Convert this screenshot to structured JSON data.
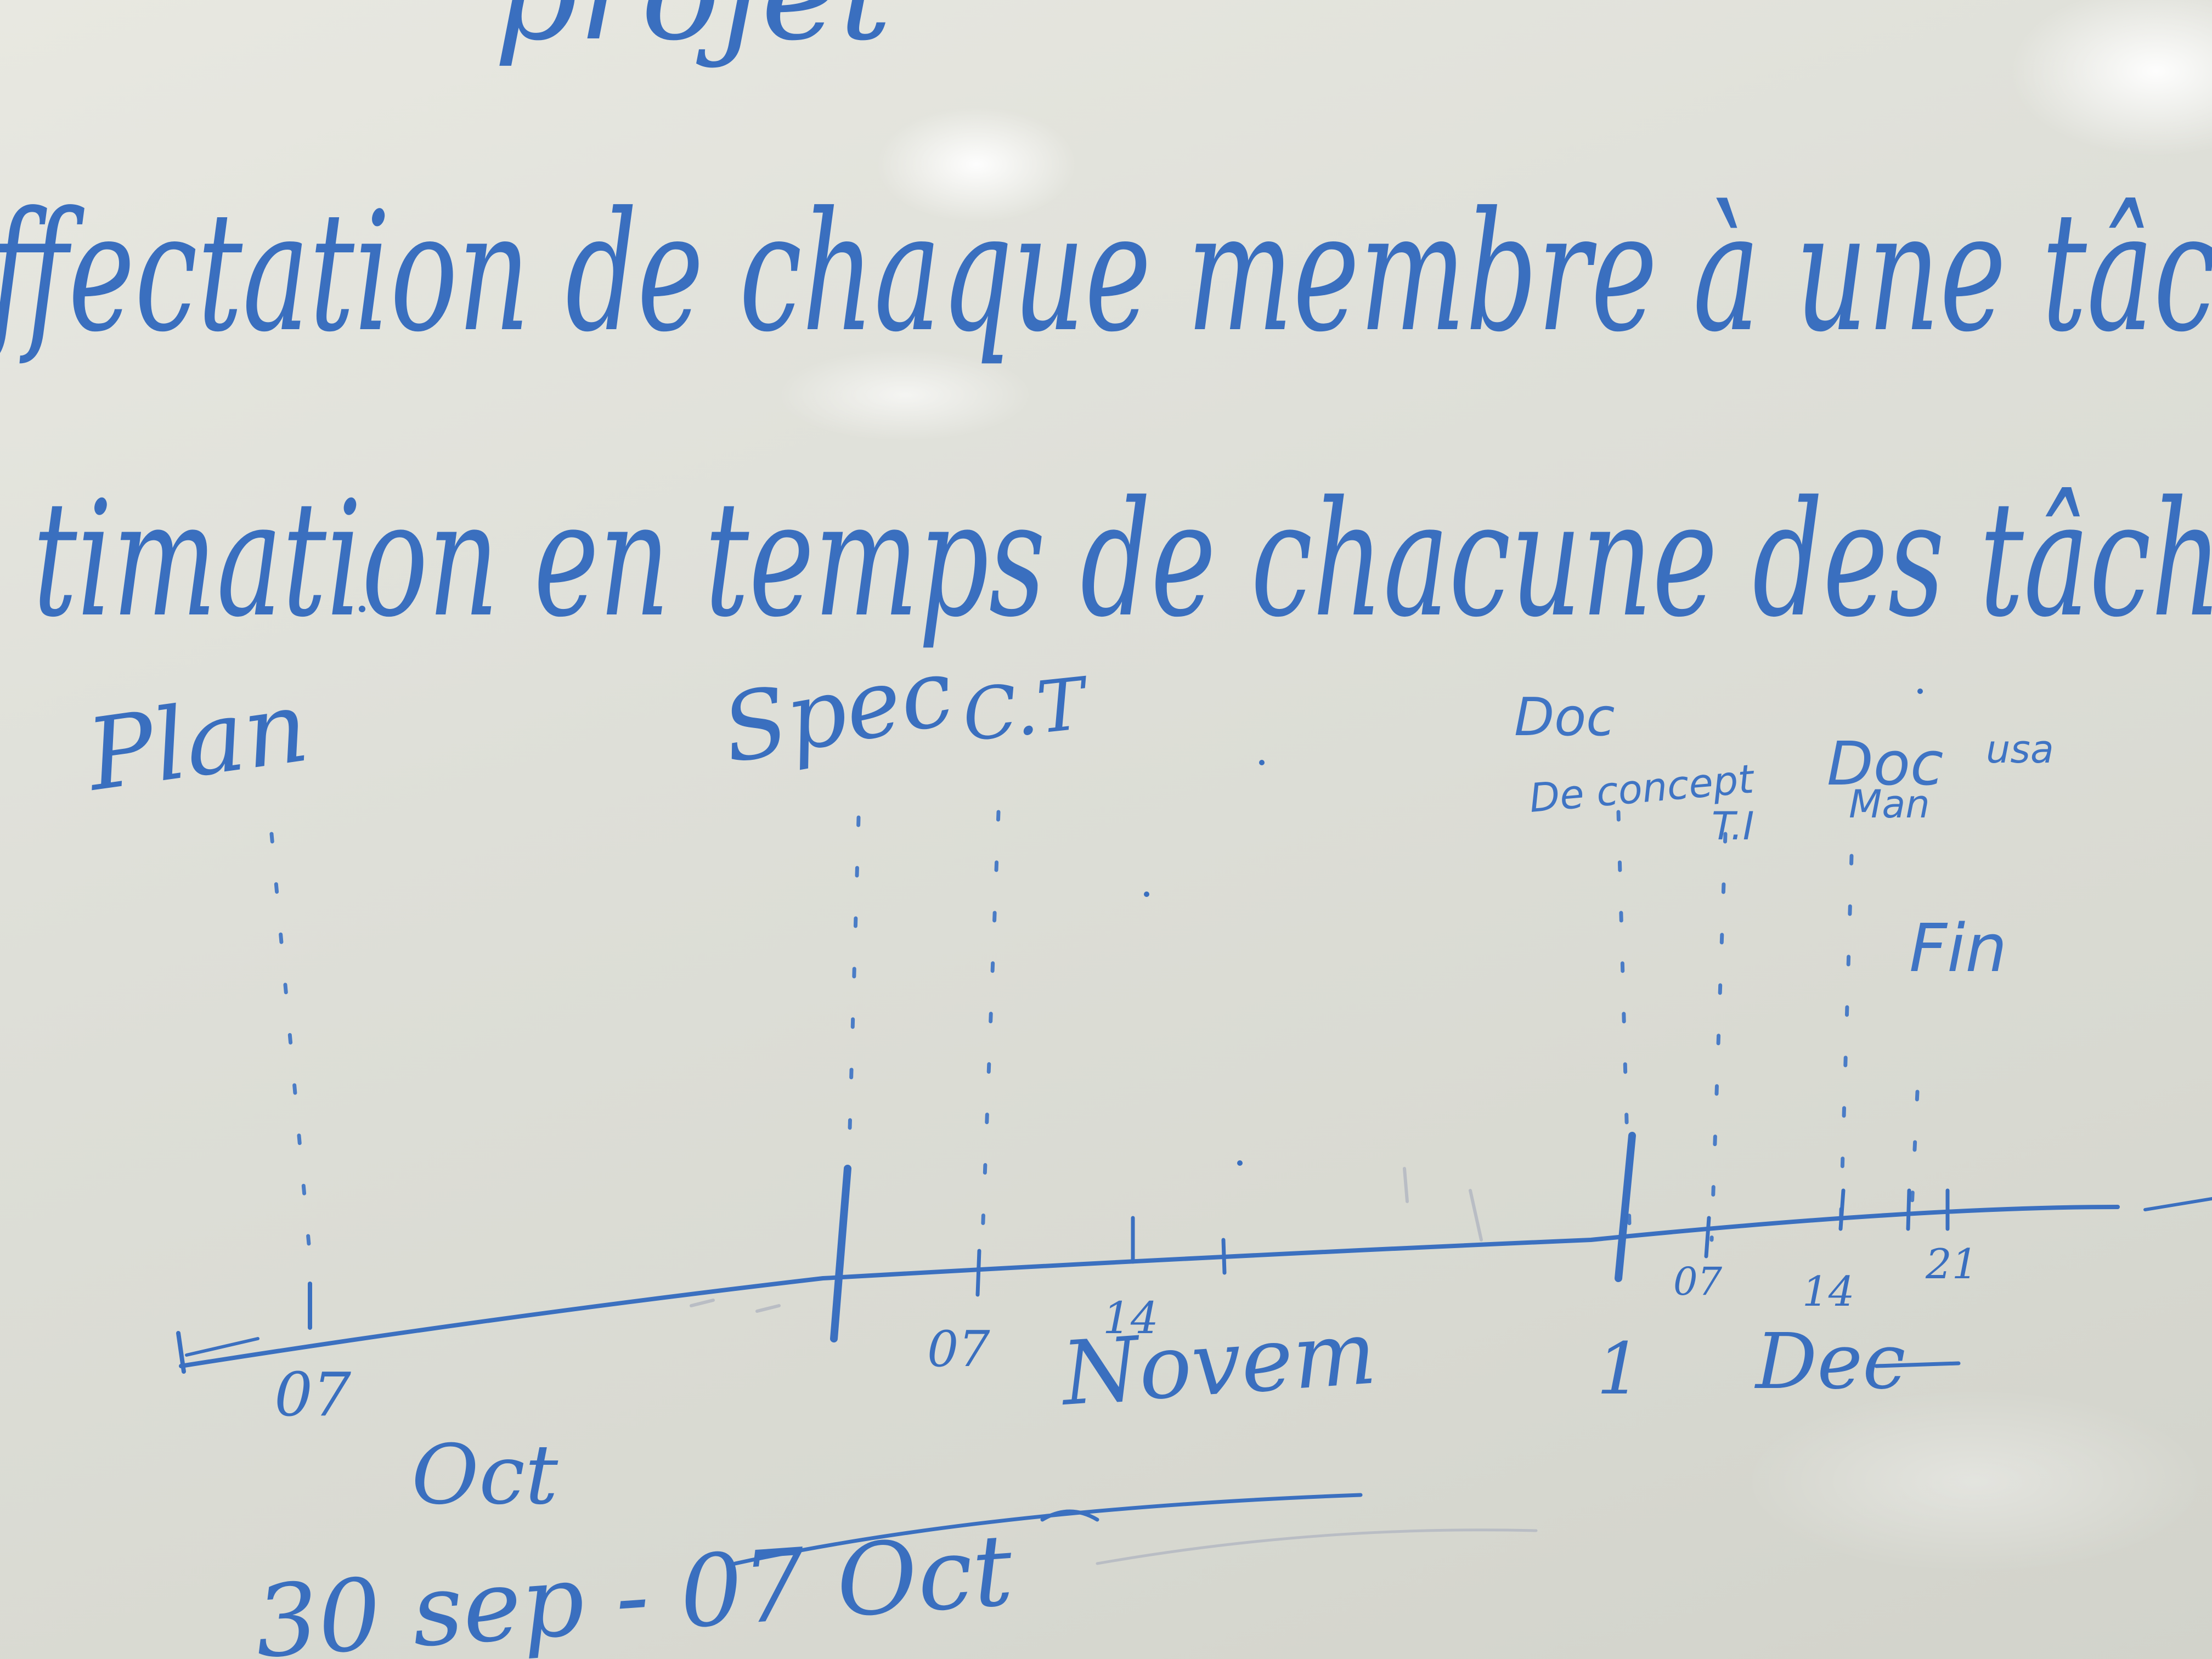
{
  "heading": {
    "partial_top": "projet",
    "line1": "ffectation de chaque membre à une tâc",
    "line2": "timation en temps de chacune des tâch"
  },
  "milestones": {
    "plan": "Plan",
    "spec": "Spec",
    "ct": "C.T",
    "doc_concept_1": "Doc",
    "doc_concept_2": "De concept",
    "ti": "T.I",
    "doc_user_1": "Doc",
    "doc_user_2": "Man",
    "doc_user_3": "usa",
    "fin": "Fin"
  },
  "timeline": {
    "day_07a": "07",
    "month_oct": "Oct",
    "day_07b": "07",
    "day_14": "14",
    "month_nov": "Novem",
    "day_1": "1",
    "day_07c": "07",
    "day_14b": "14",
    "day_21": "21",
    "month_dec": "Dec"
  },
  "bottom_note": "30 sep - 07 Oct",
  "colors": {
    "ink": "#3a6fbf",
    "board": "#e3e3dc"
  }
}
